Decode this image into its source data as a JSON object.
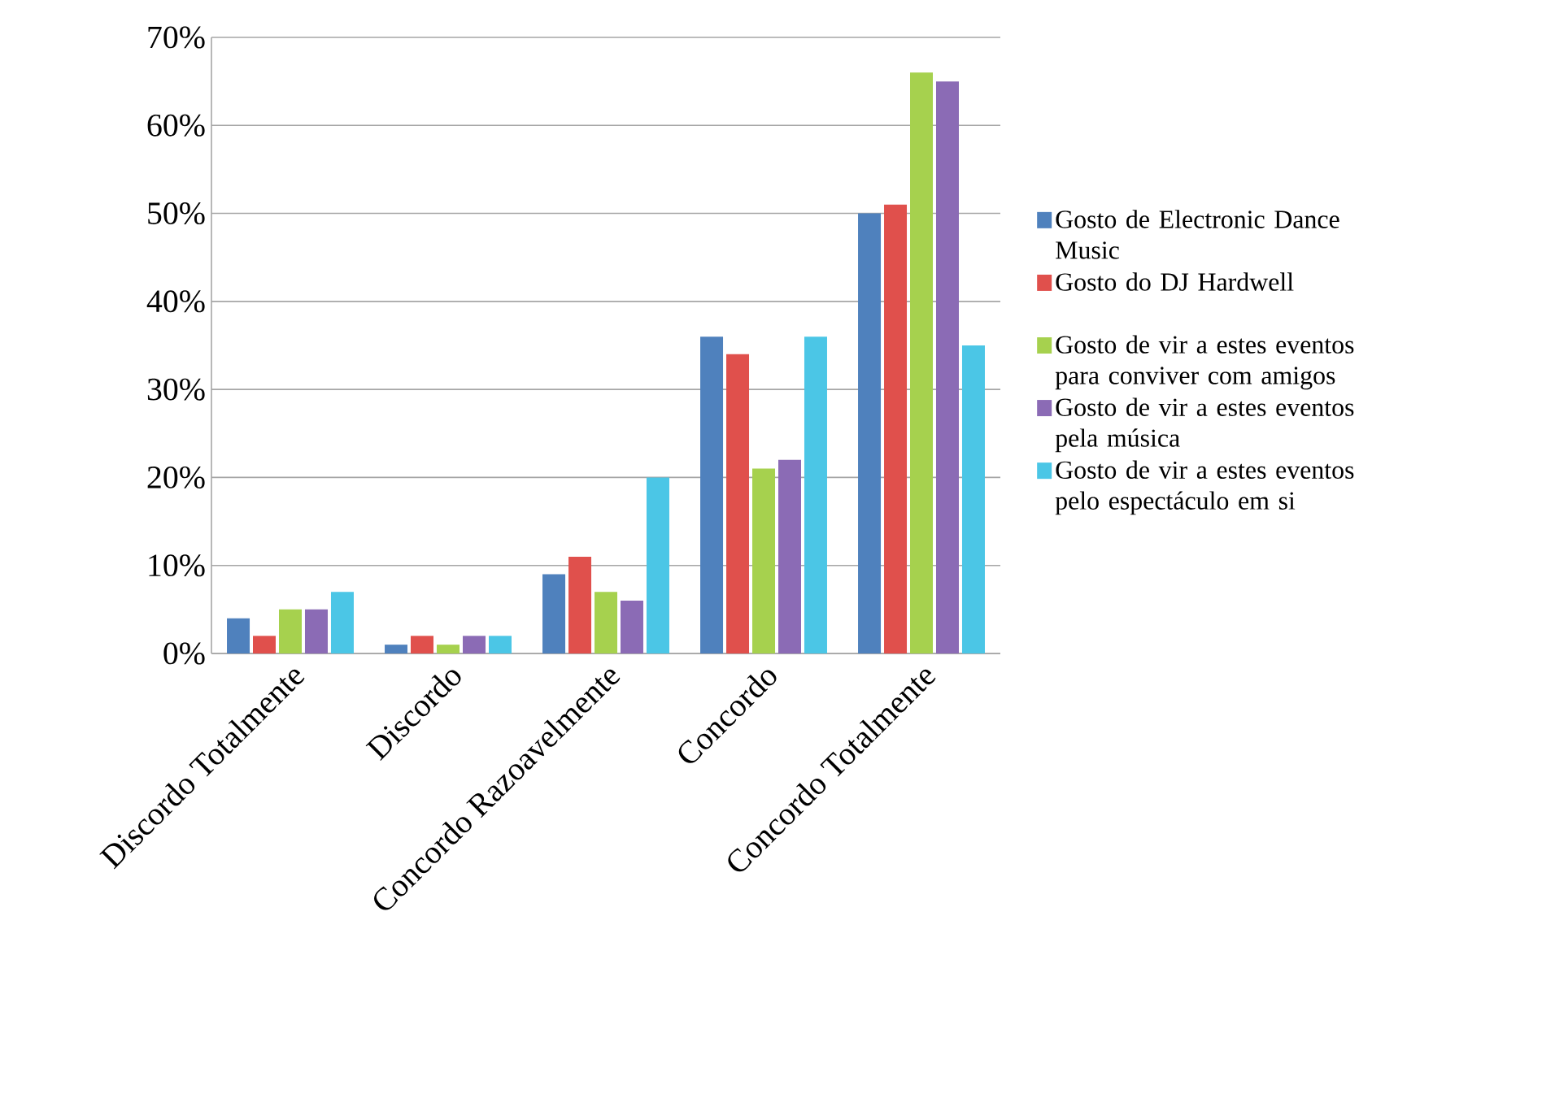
{
  "chart_data": {
    "type": "bar",
    "categories": [
      "Discordo Totalmente",
      "Discordo",
      "Concordo Razoavelmente",
      "Concordo",
      "Concordo Totalmente"
    ],
    "series": [
      {
        "name": "Gosto de Electronic Dance Music",
        "color": "#4f81bd",
        "values": [
          4,
          1,
          9,
          36,
          50
        ]
      },
      {
        "name": "Gosto do DJ Hardwell",
        "color": "#e0504c",
        "values": [
          2,
          2,
          11,
          34,
          51
        ]
      },
      {
        "name": "Gosto de vir a estes eventos para conviver com amigos",
        "color": "#a6d14e",
        "values": [
          5,
          1,
          7,
          21,
          66
        ]
      },
      {
        "name": "Gosto de vir a estes eventos pela música",
        "color": "#8b6bb5",
        "values": [
          5,
          2,
          6,
          22,
          65
        ]
      },
      {
        "name": "Gosto de vir a estes eventos pelo espectáculo em si",
        "color": "#4bc6e6",
        "values": [
          7,
          2,
          20,
          36,
          35
        ]
      }
    ],
    "ylim": [
      0,
      70
    ],
    "yticks": [
      {
        "value": 0,
        "label": "0%"
      },
      {
        "value": 10,
        "label": "10%"
      },
      {
        "value": 20,
        "label": "20%"
      },
      {
        "value": 30,
        "label": "30%"
      },
      {
        "value": 40,
        "label": "40%"
      },
      {
        "value": 50,
        "label": "50%"
      },
      {
        "value": 60,
        "label": "60%"
      },
      {
        "value": 70,
        "label": "70%"
      }
    ],
    "grid": "y",
    "legend": "right"
  }
}
